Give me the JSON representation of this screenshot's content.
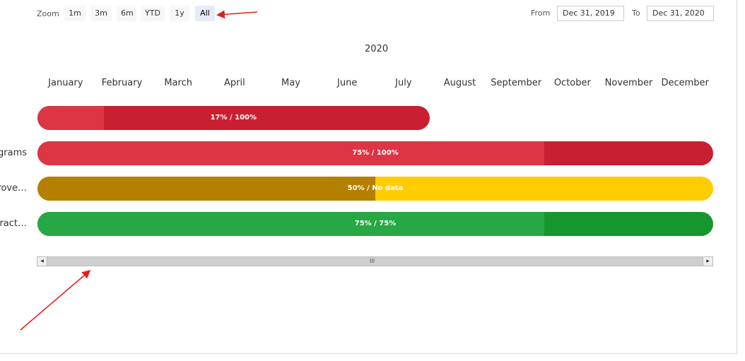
{
  "zoom": {
    "label": "Zoom",
    "buttons": [
      "1m",
      "3m",
      "6m",
      "YTD",
      "1y",
      "All"
    ],
    "active": "All"
  },
  "range": {
    "from_label": "From",
    "from_value": "Dec 31, 2019",
    "to_label": "To",
    "to_value": "Dec 31, 2020"
  },
  "colors": {
    "red_light": "#dc3545",
    "red_dark": "#c82032",
    "gold_dark": "#b58000",
    "gold_light": "#ffcc00",
    "green_light": "#28a745",
    "green_dark": "#16962f",
    "annotation": "#e0201e"
  },
  "chart_data": {
    "type": "bar",
    "title": "",
    "year_label": "2020",
    "x_tick_labels": [
      "January",
      "February",
      "March",
      "April",
      "May",
      "June",
      "July",
      "August",
      "September",
      "October",
      "November",
      "December"
    ],
    "xlim_months": [
      0,
      12
    ],
    "rows": [
      {
        "label": "",
        "start_month": 0,
        "end_month": 7,
        "progress": 0.17,
        "text": "17% / 100%",
        "fill_color": "#dc3545",
        "track_color": "#c82032"
      },
      {
        "label": "grams",
        "start_month": 0,
        "end_month": 12,
        "progress": 0.75,
        "text": "75% / 100%",
        "fill_color": "#dc3545",
        "track_color": "#c82032"
      },
      {
        "label": "rove…",
        "start_month": 0,
        "end_month": 12,
        "progress": 0.5,
        "text": "50% / No data",
        "fill_color": "#b58000",
        "track_color": "#ffcc00"
      },
      {
        "label": "tract…",
        "start_month": 0,
        "end_month": 12,
        "progress": 0.75,
        "text": "75% / 75%",
        "fill_color": "#28a745",
        "track_color": "#16962f"
      }
    ]
  },
  "scrollbar": {
    "left_arrow": "◀",
    "right_arrow": "▶",
    "grip": "III"
  }
}
